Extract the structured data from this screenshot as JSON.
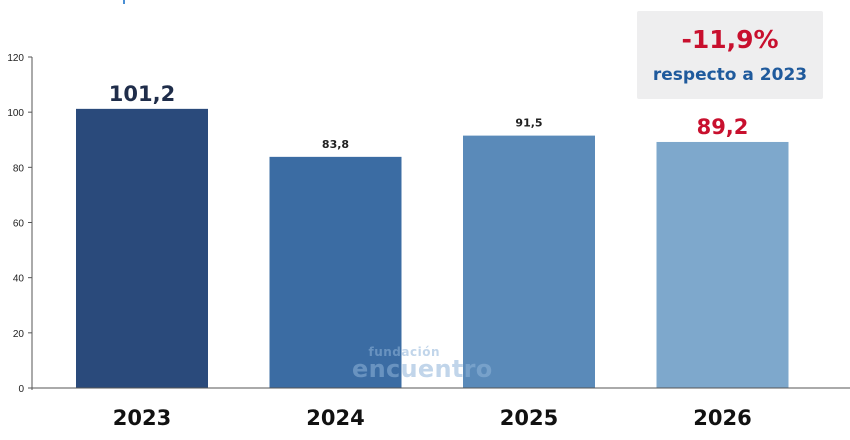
{
  "chart_data": {
    "type": "bar",
    "categories": [
      "2023",
      "2024",
      "2025",
      "2026"
    ],
    "values": [
      101.2,
      83.8,
      91.5,
      89.2
    ],
    "value_labels": [
      "101,2",
      "83,8",
      "91,5",
      "89,2"
    ],
    "ylim": [
      0,
      120
    ],
    "yticks": [
      0,
      20,
      40,
      60,
      80,
      100,
      120
    ],
    "grid": false,
    "legend": "none",
    "bar_colors": [
      "#2a4a7b",
      "#3b6ca3",
      "#5a8ab9",
      "#7ea8cc"
    ],
    "label_colors": [
      "#1f2d4a",
      "#222222",
      "#222222",
      "#c8102e"
    ]
  },
  "callout": {
    "value": "-11,9%",
    "text": "respecto a 2023",
    "value_color": "#c8102e",
    "text_color": "#1f5a9c"
  },
  "watermark": {
    "top": "fundación",
    "bottom": "encuentro"
  }
}
